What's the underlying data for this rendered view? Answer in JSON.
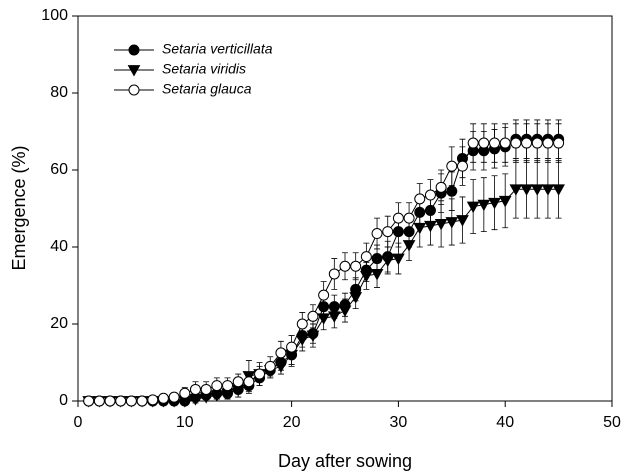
{
  "chart_data": {
    "type": "line",
    "x_label": "Day after sowing",
    "y_label": "Emergence (%)",
    "x": [
      1,
      2,
      3,
      4,
      5,
      6,
      7,
      8,
      9,
      10,
      11,
      12,
      13,
      14,
      15,
      16,
      17,
      18,
      19,
      20,
      21,
      22,
      23,
      24,
      25,
      26,
      27,
      28,
      29,
      30,
      31,
      32,
      33,
      34,
      35,
      36,
      37,
      38,
      39,
      40,
      41,
      42,
      43,
      44,
      45
    ],
    "series": [
      {
        "name": "Setaria verticillata",
        "color": "#000000",
        "marker": "circle-filled",
        "values": [
          0,
          0,
          0,
          0,
          0,
          0,
          0,
          0,
          0,
          0,
          1,
          1.5,
          2,
          2,
          3,
          4,
          6,
          8,
          10,
          12,
          17,
          17.5,
          24.5,
          24.5,
          25,
          29,
          34,
          37,
          37.5,
          44,
          44,
          49,
          49.5,
          54,
          54.5,
          63,
          65,
          65,
          65.5,
          66,
          68,
          68,
          68,
          68,
          68
        ],
        "errors": [
          0,
          0,
          0,
          0,
          0,
          0,
          0,
          0,
          0,
          1,
          1,
          1.5,
          1.5,
          1.5,
          2,
          2,
          2,
          2,
          2,
          2.5,
          3,
          2.5,
          3,
          3,
          3,
          3,
          3,
          3.5,
          4,
          4,
          4,
          4,
          4,
          5,
          5,
          5,
          5,
          5,
          5,
          5,
          5,
          5,
          5,
          5,
          5
        ]
      },
      {
        "name": "Setaria viridis",
        "color": "#000000",
        "marker": "triangle-down-filled",
        "values": [
          0,
          0,
          0,
          0,
          0,
          0,
          0,
          0,
          0,
          0,
          0.5,
          1,
          1.5,
          2,
          3,
          6.5,
          7,
          8,
          9,
          12,
          16,
          17,
          21.5,
          22,
          23.5,
          27,
          32.5,
          33,
          36.5,
          37,
          40.5,
          45,
          45.5,
          46,
          46.5,
          47,
          50.5,
          51,
          51.5,
          52,
          55,
          55,
          55,
          55,
          55
        ],
        "errors": [
          0,
          0,
          0,
          0,
          0,
          0,
          0,
          0,
          0,
          0,
          1,
          1,
          1,
          1.5,
          2,
          4,
          3,
          2,
          2,
          3,
          3,
          3,
          3,
          3,
          3,
          3,
          3.5,
          3.5,
          3.5,
          4,
          4,
          5,
          5,
          6,
          6,
          6,
          7,
          7,
          7,
          7,
          7.5,
          7.5,
          7.5,
          7.5,
          7.5
        ]
      },
      {
        "name": "Setaria glauca",
        "color": "#000000",
        "marker": "circle-open",
        "values": [
          0,
          0,
          0,
          0,
          0,
          0,
          0.3,
          0.7,
          1,
          2,
          3,
          3,
          4,
          4,
          5,
          5,
          7,
          9,
          12.5,
          14,
          20,
          22,
          27.5,
          33,
          35,
          35,
          37.5,
          43.5,
          44,
          47.5,
          47.5,
          52.5,
          53.5,
          55.5,
          61,
          61,
          67,
          67,
          67,
          67,
          67,
          67,
          67,
          67,
          67
        ],
        "errors": [
          0,
          0,
          0,
          0,
          0,
          0,
          0.5,
          1,
          1,
          1.5,
          2,
          2,
          2,
          2,
          2,
          2,
          2,
          2.5,
          3,
          3,
          3,
          3,
          3.5,
          4,
          3.5,
          3.5,
          3.5,
          4,
          4,
          4,
          4,
          4,
          4,
          4.5,
          5,
          5,
          5,
          5,
          5,
          5,
          5,
          5,
          5,
          5,
          5
        ]
      }
    ],
    "xlim": [
      0,
      50
    ],
    "xticks": [
      0,
      10,
      20,
      30,
      40,
      50
    ],
    "ylim": [
      0,
      100
    ],
    "yticks": [
      0,
      20,
      40,
      60,
      80,
      100
    ],
    "legend": "upper-left"
  }
}
